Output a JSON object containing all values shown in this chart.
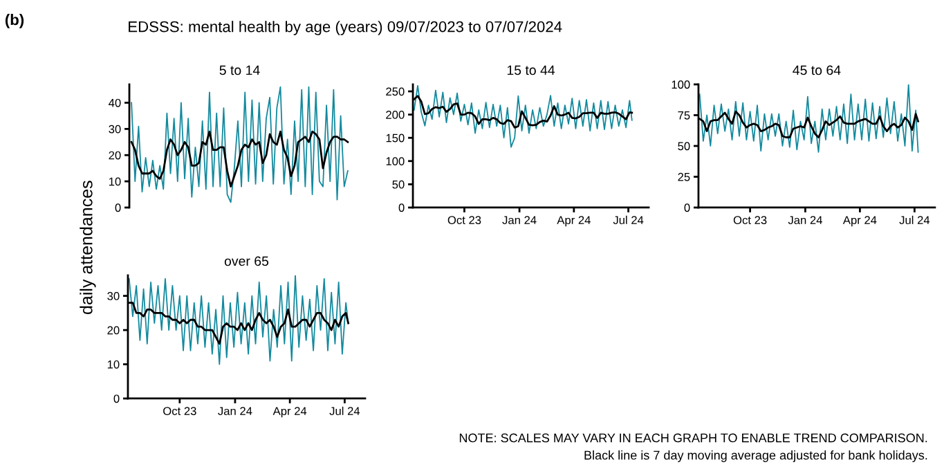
{
  "chart_data": [
    {
      "type": "line",
      "title": "5 to 14",
      "ylabel": "daily attendances",
      "ylim": [
        0,
        47
      ],
      "yticks": [
        0,
        10,
        20,
        30,
        40
      ],
      "tick_labels": "y",
      "grid": false,
      "legend": false,
      "annotations": [
        "(b)",
        "EDSSS: mental health by age (years) 09/07/2023 to 07/07/2024",
        "NOTE: SCALES MAY VARY IN EACH GRAPH TO ENABLE TREND COMPARISON.",
        "Black line is 7 day moving average adjusted for bank holidays."
      ],
      "categories": [
        null,
        null,
        null,
        null,
        null,
        null,
        null,
        null,
        null,
        null,
        null,
        null,
        null,
        null,
        null,
        null,
        null,
        null,
        null,
        null,
        null,
        null,
        null,
        null,
        null,
        null,
        null,
        null,
        null,
        null,
        null,
        null,
        null,
        null,
        null,
        null,
        null,
        null,
        null,
        null,
        null,
        null,
        null,
        null,
        null,
        null,
        null,
        null,
        null,
        null,
        null,
        null,
        null,
        null,
        null,
        null,
        null,
        null,
        null,
        null,
        null,
        null
      ],
      "series": [
        {
          "color": "#138a9e",
          "values": [
            40,
            10,
            31,
            6,
            19,
            8,
            18,
            7,
            16,
            7,
            36,
            13,
            34,
            10,
            40,
            11,
            34,
            4,
            23,
            8,
            33,
            7,
            44,
            8,
            36,
            8,
            38,
            5,
            2,
            15,
            33,
            8,
            44,
            10,
            41,
            9,
            40,
            10,
            34,
            42,
            9,
            38,
            46,
            9,
            26,
            5,
            33,
            10,
            45,
            8,
            46,
            5,
            44,
            10,
            8,
            39,
            10,
            45,
            3,
            35,
            8,
            14
          ]
        },
        {
          "color": "#000000",
          "values": [
            25,
            22,
            16,
            13,
            13,
            13,
            14,
            12,
            11,
            14,
            22,
            26,
            24,
            20,
            22,
            25,
            23,
            16,
            16,
            17,
            25,
            24,
            29,
            22,
            22,
            23,
            23,
            14,
            8,
            12,
            16,
            22,
            24,
            23,
            26,
            24,
            25,
            17,
            20,
            28,
            25,
            24,
            29,
            22,
            19,
            12,
            16,
            25,
            26,
            27,
            25,
            29,
            28,
            26,
            15,
            21,
            25,
            27,
            27,
            26,
            26,
            25
          ]
        }
      ]
    },
    {
      "type": "line",
      "title": "15 to 44",
      "xlim": [
        "2023-07-07",
        "2024-08-04"
      ],
      "ylim": [
        0,
        265
      ],
      "yticks": [
        0,
        50,
        100,
        150,
        200,
        250
      ],
      "grid": false,
      "legend": false,
      "xticks": [
        {
          "value": "2023-10-01",
          "label": "Oct 23"
        },
        {
          "value": "2024-01-01",
          "label": "Jan 24"
        },
        {
          "value": "2024-04-01",
          "label": "Apr 24"
        },
        {
          "value": "2024-07-01",
          "label": "Jul 24"
        }
      ],
      "x": [
        "2023-07-09",
        "2023-07-15",
        "2023-07-21",
        "2023-07-27",
        "2023-08-02",
        "2023-08-08",
        "2023-08-14",
        "2023-08-20",
        "2023-08-26",
        "2023-09-01",
        "2023-09-07",
        "2023-09-13",
        "2023-09-19",
        "2023-09-25",
        "2023-10-01",
        "2023-10-07",
        "2023-10-13",
        "2023-10-19",
        "2023-10-25",
        "2023-10-31",
        "2023-11-06",
        "2023-11-12",
        "2023-11-18",
        "2023-11-24",
        "2023-11-30",
        "2023-12-06",
        "2023-12-12",
        "2023-12-18",
        "2023-12-24",
        "2023-12-30",
        "2024-01-05",
        "2024-01-11",
        "2024-01-17",
        "2024-01-23",
        "2024-01-29",
        "2024-02-04",
        "2024-02-10",
        "2024-02-16",
        "2024-02-22",
        "2024-02-28",
        "2024-03-05",
        "2024-03-11",
        "2024-03-17",
        "2024-03-23",
        "2024-03-29",
        "2024-04-04",
        "2024-04-10",
        "2024-04-16",
        "2024-04-22",
        "2024-04-28",
        "2024-05-04",
        "2024-05-10",
        "2024-05-16",
        "2024-05-22",
        "2024-05-28",
        "2024-06-03",
        "2024-06-09",
        "2024-06-15",
        "2024-06-21",
        "2024-06-27",
        "2024-07-03",
        "2024-07-07"
      ],
      "series": [
        {
          "color": "#138a9e",
          "values": [
            210,
            262,
            205,
            176,
            220,
            190,
            252,
            195,
            248,
            183,
            236,
            200,
            246,
            186,
            222,
            178,
            225,
            160,
            210,
            170,
            226,
            172,
            222,
            175,
            220,
            150,
            215,
            130,
            150,
            240,
            165,
            220,
            160,
            210,
            170,
            215,
            175,
            200,
            241,
            175,
            225,
            170,
            220,
            180,
            235,
            170,
            230,
            175,
            232,
            165,
            225,
            170,
            230,
            168,
            228,
            170,
            220,
            175,
            210,
            172,
            230,
            188
          ]
        },
        {
          "color": "#000000",
          "values": [
            233,
            240,
            228,
            201,
            203,
            212,
            216,
            214,
            217,
            206,
            212,
            222,
            224,
            200,
            200,
            204,
            203,
            196,
            180,
            190,
            190,
            188,
            193,
            190,
            182,
            180,
            188,
            186,
            172,
            175,
            207,
            193,
            178,
            177,
            178,
            184,
            187,
            185,
            198,
            218,
            200,
            198,
            200,
            204,
            193,
            192,
            195,
            203,
            203,
            204,
            204,
            193,
            204,
            202,
            202,
            204,
            205,
            202,
            196,
            190,
            205,
            204
          ]
        }
      ]
    },
    {
      "type": "line",
      "title": "45 to 64",
      "xlim": [
        "2023-07-07",
        "2024-08-04"
      ],
      "ylim": [
        0,
        100
      ],
      "yticks": [
        0,
        25,
        50,
        75,
        100
      ],
      "grid": false,
      "legend": false,
      "xticks": [
        {
          "value": "2023-10-01",
          "label": "Oct 23"
        },
        {
          "value": "2024-01-01",
          "label": "Jan 24"
        },
        {
          "value": "2024-04-01",
          "label": "Apr 24"
        },
        {
          "value": "2024-07-01",
          "label": "Jul 24"
        }
      ],
      "x": [
        "2023-07-09",
        "2023-07-15",
        "2023-07-21",
        "2023-07-27",
        "2023-08-02",
        "2023-08-08",
        "2023-08-14",
        "2023-08-20",
        "2023-08-26",
        "2023-09-01",
        "2023-09-07",
        "2023-09-13",
        "2023-09-19",
        "2023-09-25",
        "2023-10-01",
        "2023-10-07",
        "2023-10-13",
        "2023-10-19",
        "2023-10-25",
        "2023-10-31",
        "2023-11-06",
        "2023-11-12",
        "2023-11-18",
        "2023-11-24",
        "2023-11-30",
        "2023-12-06",
        "2023-12-12",
        "2023-12-18",
        "2023-12-24",
        "2023-12-30",
        "2024-01-05",
        "2024-01-11",
        "2024-01-17",
        "2024-01-23",
        "2024-01-29",
        "2024-02-04",
        "2024-02-10",
        "2024-02-16",
        "2024-02-22",
        "2024-02-28",
        "2024-03-05",
        "2024-03-11",
        "2024-03-17",
        "2024-03-23",
        "2024-03-29",
        "2024-04-04",
        "2024-04-10",
        "2024-04-16",
        "2024-04-22",
        "2024-04-28",
        "2024-05-04",
        "2024-05-10",
        "2024-05-16",
        "2024-05-22",
        "2024-05-28",
        "2024-06-03",
        "2024-06-09",
        "2024-06-15",
        "2024-06-21",
        "2024-06-27",
        "2024-07-03",
        "2024-07-07"
      ],
      "series": [
        {
          "color": "#138a9e",
          "values": [
            92,
            54,
            75,
            50,
            83,
            60,
            84,
            62,
            80,
            55,
            86,
            58,
            85,
            55,
            78,
            54,
            83,
            46,
            76,
            55,
            76,
            58,
            76,
            50,
            70,
            49,
            79,
            47,
            70,
            55,
            90,
            52,
            70,
            45,
            80,
            55,
            80,
            58,
            82,
            55,
            84,
            52,
            92,
            55,
            84,
            55,
            88,
            54,
            85,
            56,
            82,
            57,
            89,
            60,
            86,
            54,
            76,
            50,
            100,
            46,
            79,
            45
          ]
        },
        {
          "color": "#000000",
          "values": [
            72,
            70,
            62,
            70,
            71,
            71,
            74,
            77,
            72,
            68,
            78,
            75,
            69,
            65,
            67,
            68,
            67,
            62,
            63,
            65,
            66,
            68,
            67,
            58,
            57,
            57,
            64,
            65,
            66,
            65,
            73,
            66,
            60,
            57,
            63,
            70,
            67,
            69,
            71,
            74,
            69,
            68,
            68,
            68,
            70,
            71,
            72,
            70,
            68,
            68,
            74,
            66,
            62,
            66,
            68,
            65,
            67,
            73,
            70,
            63,
            76,
            70
          ]
        }
      ]
    },
    {
      "type": "line",
      "title": "over 65",
      "xlim": [
        "2023-07-07",
        "2024-08-04"
      ],
      "ylim": [
        0,
        36
      ],
      "yticks": [
        0,
        10,
        20,
        30
      ],
      "grid": false,
      "legend": false,
      "xticks": [
        {
          "value": "2023-10-01",
          "label": "Oct 23"
        },
        {
          "value": "2024-01-01",
          "label": "Jan 24"
        },
        {
          "value": "2024-04-01",
          "label": "Apr 24"
        },
        {
          "value": "2024-07-01",
          "label": "Jul 24"
        }
      ],
      "x": [
        "2023-07-09",
        "2023-07-15",
        "2023-07-21",
        "2023-07-27",
        "2023-08-02",
        "2023-08-08",
        "2023-08-14",
        "2023-08-20",
        "2023-08-26",
        "2023-09-01",
        "2023-09-07",
        "2023-09-13",
        "2023-09-19",
        "2023-09-25",
        "2023-10-01",
        "2023-10-07",
        "2023-10-13",
        "2023-10-19",
        "2023-10-25",
        "2023-10-31",
        "2023-11-06",
        "2023-11-12",
        "2023-11-18",
        "2023-11-24",
        "2023-11-30",
        "2023-12-06",
        "2023-12-12",
        "2023-12-18",
        "2023-12-24",
        "2023-12-30",
        "2024-01-05",
        "2024-01-11",
        "2024-01-17",
        "2024-01-23",
        "2024-01-29",
        "2024-02-04",
        "2024-02-10",
        "2024-02-16",
        "2024-02-22",
        "2024-02-28",
        "2024-03-05",
        "2024-03-11",
        "2024-03-17",
        "2024-03-23",
        "2024-03-29",
        "2024-04-04",
        "2024-04-10",
        "2024-04-16",
        "2024-04-22",
        "2024-04-28",
        "2024-05-04",
        "2024-05-10",
        "2024-05-16",
        "2024-05-22",
        "2024-05-28",
        "2024-06-03",
        "2024-06-09",
        "2024-06-15",
        "2024-06-21",
        "2024-06-27",
        "2024-07-03",
        "2024-07-07"
      ],
      "series": [
        {
          "color": "#138a9e",
          "values": [
            35,
            24,
            33,
            17,
            32,
            16,
            34,
            22,
            33,
            20,
            35,
            20,
            33,
            20,
            30,
            14,
            30,
            14,
            28,
            16,
            30,
            15,
            28,
            13,
            26,
            10,
            30,
            12,
            28,
            15,
            31,
            16,
            28,
            13,
            30,
            16,
            34,
            18,
            30,
            11,
            26,
            15,
            33,
            16,
            34,
            11,
            36,
            15,
            30,
            17,
            29,
            14,
            33,
            20,
            35,
            14,
            31,
            16,
            34,
            13,
            28,
            22
          ]
        },
        {
          "color": "#000000",
          "values": [
            28,
            28,
            25,
            25,
            24,
            26,
            26,
            25,
            25,
            25,
            24,
            24,
            23,
            23,
            22,
            23,
            22,
            23,
            23,
            21,
            21,
            20,
            20,
            20,
            18,
            16,
            21,
            22,
            21,
            21,
            20,
            22,
            20,
            22,
            20,
            23,
            25,
            23,
            22,
            23,
            21,
            18,
            21,
            22,
            26,
            21,
            21,
            22,
            23,
            23,
            21,
            23,
            25,
            25,
            23,
            22,
            20,
            23,
            21,
            24,
            25,
            22
          ]
        }
      ]
    }
  ]
}
